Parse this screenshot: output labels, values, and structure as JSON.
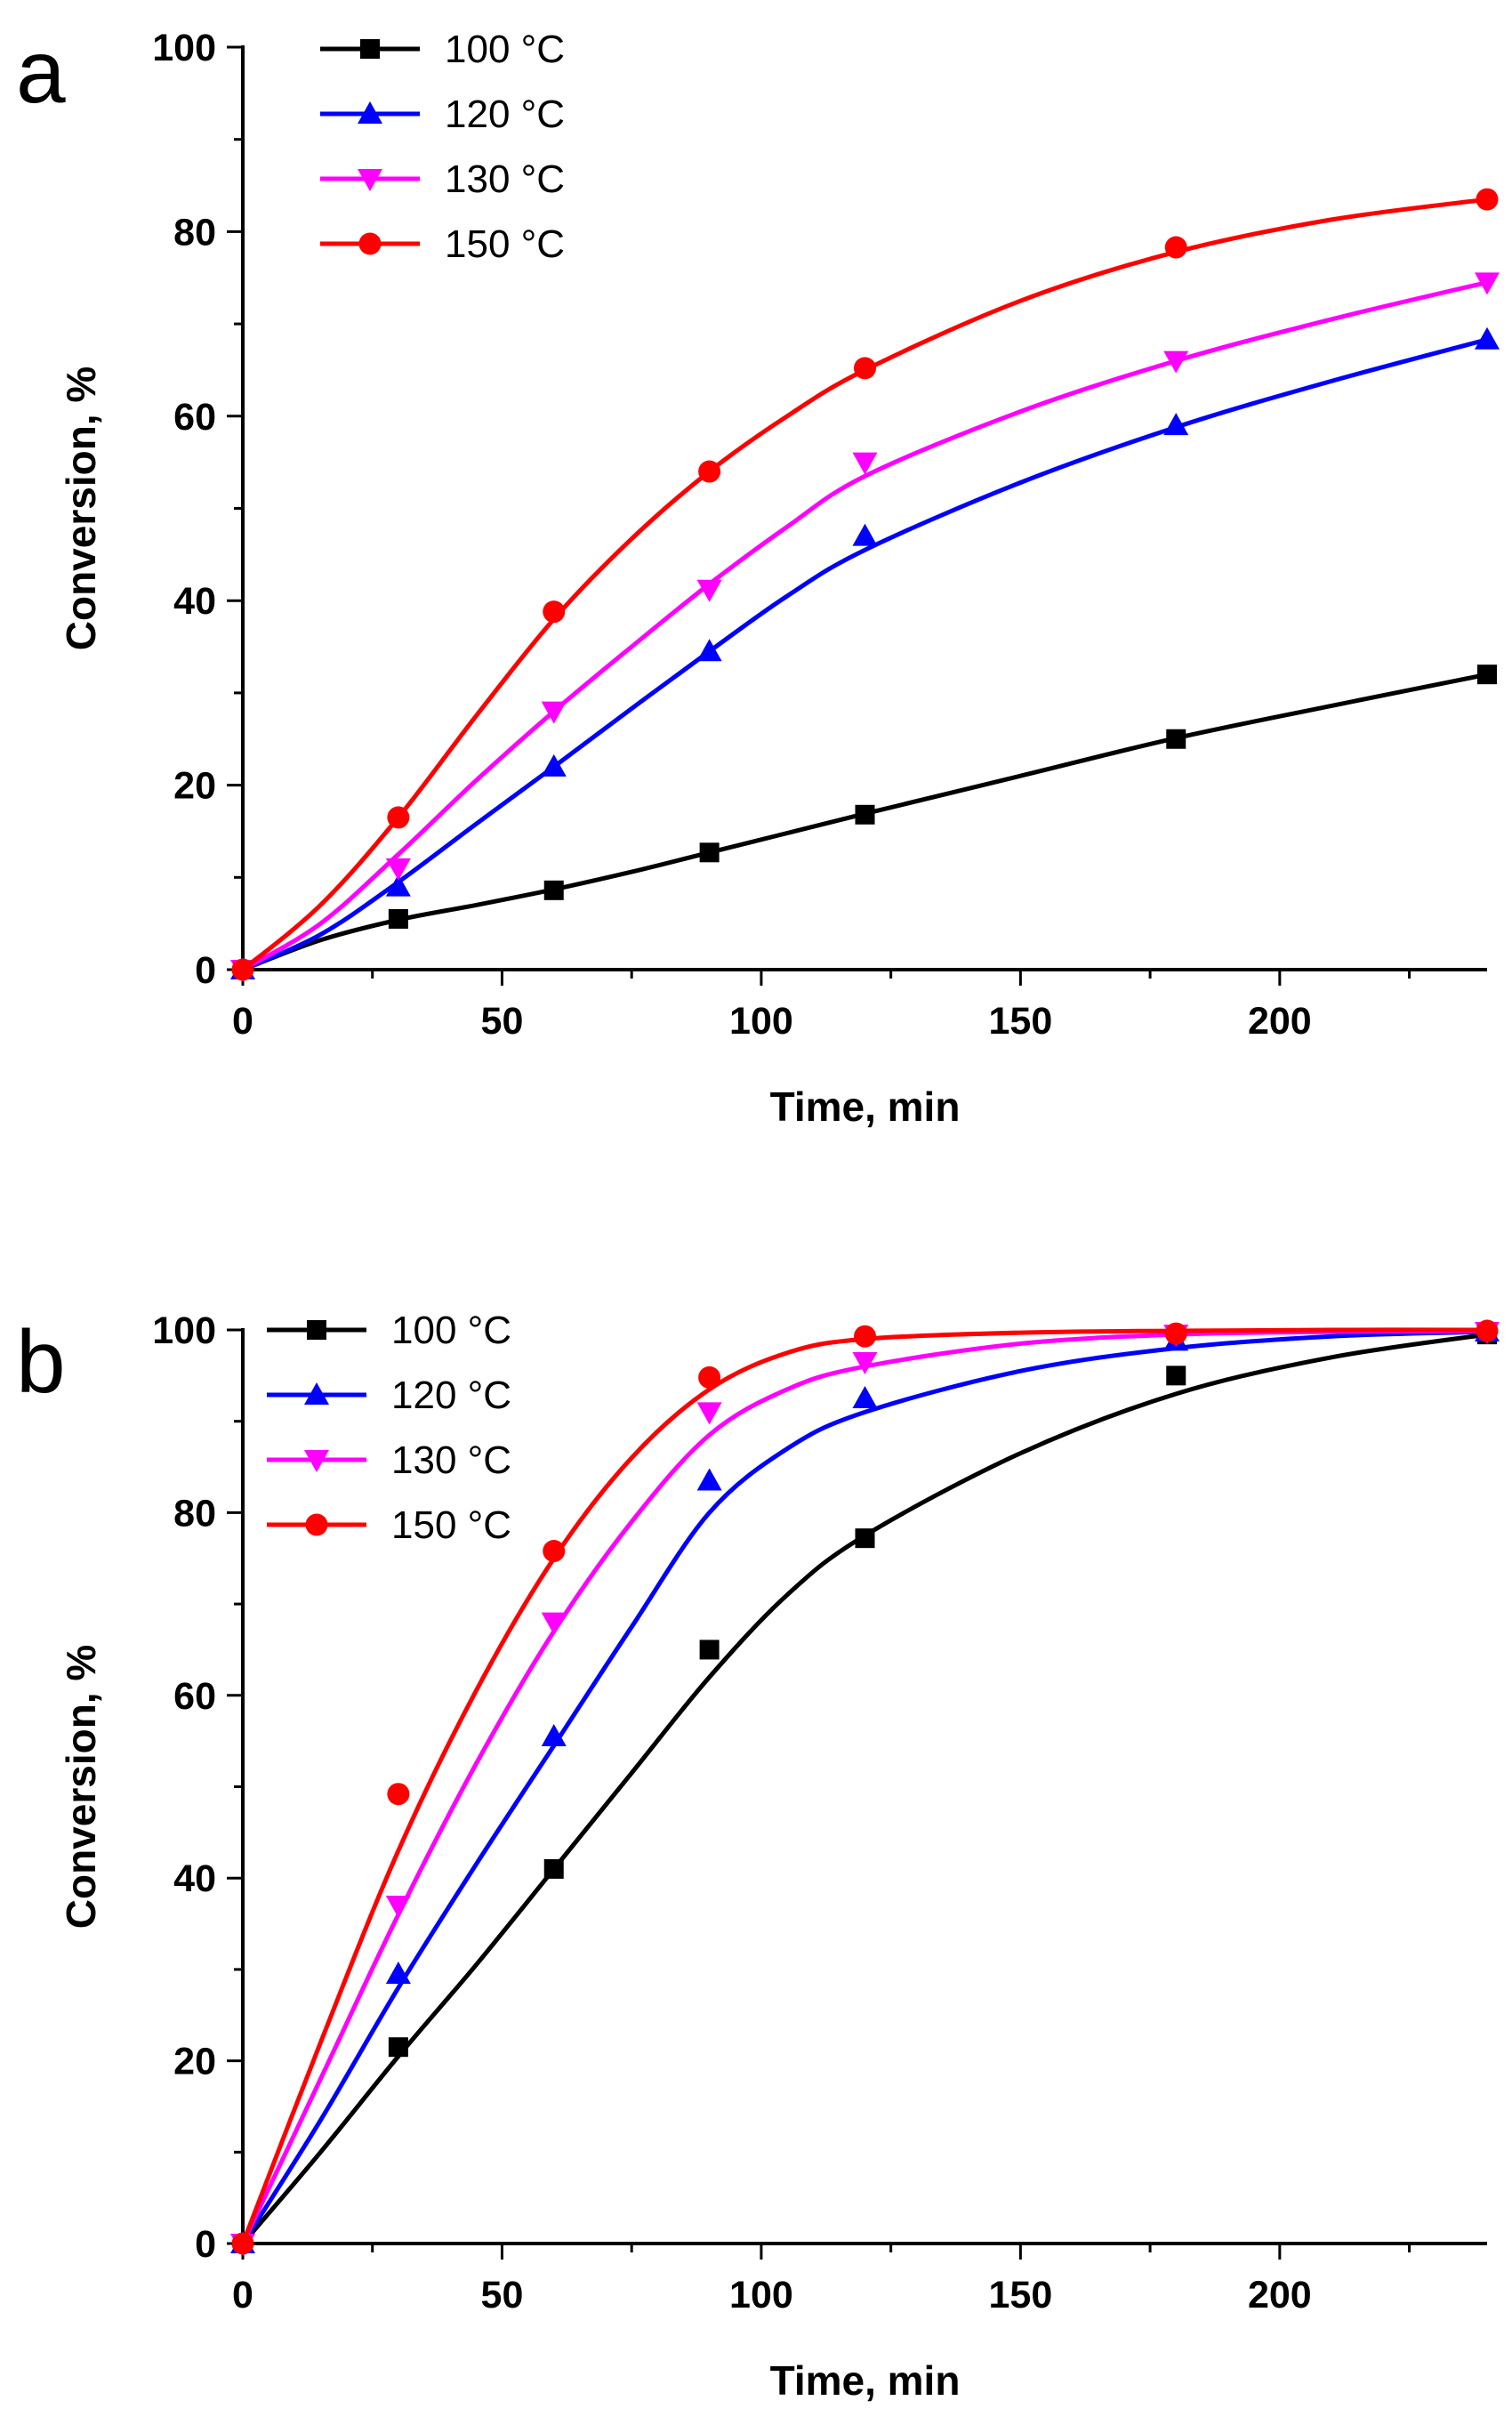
{
  "chart_data": [
    {
      "type": "line",
      "panel_label": "a",
      "xlabel": "Time, min",
      "ylabel": "Conversion, %",
      "xlim": [
        0,
        240
      ],
      "ylim": [
        0,
        100
      ],
      "x_ticks": [
        0,
        50,
        100,
        150,
        200
      ],
      "y_ticks": [
        0,
        20,
        40,
        60,
        80,
        100
      ],
      "legend_position": "top-left",
      "series": [
        {
          "name": "100 °C",
          "color": "#000000",
          "marker": "square",
          "points": [
            [
              0,
              0
            ],
            [
              30,
              5.5
            ],
            [
              60,
              8.6
            ],
            [
              90,
              12.7
            ],
            [
              120,
              16.8
            ],
            [
              180,
              25.0
            ],
            [
              240,
              32.0
            ]
          ],
          "fit": [
            [
              0,
              0
            ],
            [
              15,
              3.2
            ],
            [
              30,
              5.4
            ],
            [
              45,
              7.0
            ],
            [
              60,
              8.7
            ],
            [
              75,
              10.6
            ],
            [
              90,
              12.7
            ],
            [
              105,
              14.8
            ],
            [
              120,
              16.9
            ],
            [
              150,
              21.0
            ],
            [
              180,
              25.1
            ],
            [
              210,
              28.6
            ],
            [
              240,
              32.0
            ]
          ]
        },
        {
          "name": "120 °C",
          "color": "#0000ff",
          "marker": "triangle-up",
          "points": [
            [
              0,
              0
            ],
            [
              30,
              9.0
            ],
            [
              60,
              22.0
            ],
            [
              90,
              34.5
            ],
            [
              120,
              47.0
            ],
            [
              180,
              59.0
            ],
            [
              240,
              68.3
            ]
          ],
          "fit": [
            [
              0,
              0
            ],
            [
              15,
              3.8
            ],
            [
              30,
              9.5
            ],
            [
              45,
              15.8
            ],
            [
              60,
              22.0
            ],
            [
              75,
              28.3
            ],
            [
              90,
              34.5
            ],
            [
              105,
              40.5
            ],
            [
              120,
              45.5
            ],
            [
              150,
              52.8
            ],
            [
              180,
              58.8
            ],
            [
              210,
              63.8
            ],
            [
              240,
              68.3
            ]
          ]
        },
        {
          "name": "130 °C",
          "color": "#ff00ff",
          "marker": "triangle-down",
          "points": [
            [
              0,
              0
            ],
            [
              30,
              11.0
            ],
            [
              60,
              28.0
            ],
            [
              90,
              41.2
            ],
            [
              120,
              55.0
            ],
            [
              180,
              66.0
            ],
            [
              240,
              74.5
            ]
          ],
          "fit": [
            [
              0,
              0
            ],
            [
              15,
              5.0
            ],
            [
              30,
              12.5
            ],
            [
              45,
              20.5
            ],
            [
              60,
              28.0
            ],
            [
              75,
              35.0
            ],
            [
              90,
              41.8
            ],
            [
              105,
              48.0
            ],
            [
              120,
              53.5
            ],
            [
              150,
              60.5
            ],
            [
              180,
              66.0
            ],
            [
              210,
              70.5
            ],
            [
              240,
              74.5
            ]
          ]
        },
        {
          "name": "150 °C",
          "color": "#ff0000",
          "marker": "circle",
          "points": [
            [
              0,
              0
            ],
            [
              30,
              16.5
            ],
            [
              60,
              38.8
            ],
            [
              90,
              54.0
            ],
            [
              120,
              65.2
            ],
            [
              180,
              78.3
            ],
            [
              240,
              83.5
            ]
          ],
          "fit": [
            [
              0,
              0
            ],
            [
              15,
              7.0
            ],
            [
              30,
              16.5
            ],
            [
              45,
              27.5
            ],
            [
              60,
              38.0
            ],
            [
              75,
              46.7
            ],
            [
              90,
              54.0
            ],
            [
              105,
              60.0
            ],
            [
              120,
              65.0
            ],
            [
              150,
              72.5
            ],
            [
              180,
              77.8
            ],
            [
              210,
              81.3
            ],
            [
              240,
              83.5
            ]
          ]
        }
      ]
    },
    {
      "type": "line",
      "panel_label": "b",
      "xlabel": "Time, min",
      "ylabel": "Conversion, %",
      "xlim": [
        0,
        240
      ],
      "ylim": [
        0,
        100
      ],
      "x_ticks": [
        0,
        50,
        100,
        150,
        200
      ],
      "y_ticks": [
        0,
        20,
        40,
        60,
        80,
        100
      ],
      "legend_position": "top-left",
      "series": [
        {
          "name": "100 °C",
          "color": "#000000",
          "marker": "square",
          "points": [
            [
              0,
              0
            ],
            [
              30,
              21.5
            ],
            [
              60,
              41.0
            ],
            [
              90,
              65.0
            ],
            [
              120,
              77.2
            ],
            [
              180,
              95.0
            ],
            [
              240,
              99.5
            ]
          ],
          "fit": [
            [
              0,
              0
            ],
            [
              15,
              10.0
            ],
            [
              30,
              20.5
            ],
            [
              45,
              30.5
            ],
            [
              60,
              41.0
            ],
            [
              75,
              51.5
            ],
            [
              90,
              62.0
            ],
            [
              105,
              71.0
            ],
            [
              120,
              77.5
            ],
            [
              150,
              86.5
            ],
            [
              180,
              93.0
            ],
            [
              210,
              97.0
            ],
            [
              240,
              99.5
            ]
          ]
        },
        {
          "name": "120 °C",
          "color": "#0000ff",
          "marker": "triangle-up",
          "points": [
            [
              0,
              0
            ],
            [
              30,
              29.5
            ],
            [
              60,
              55.5
            ],
            [
              90,
              83.5
            ],
            [
              120,
              92.5
            ],
            [
              180,
              98.8
            ],
            [
              240,
              99.8
            ]
          ],
          "fit": [
            [
              0,
              0
            ],
            [
              15,
              13.5
            ],
            [
              30,
              28.0
            ],
            [
              45,
              41.5
            ],
            [
              60,
              54.5
            ],
            [
              75,
              67.5
            ],
            [
              90,
              80.0
            ],
            [
              105,
              87.0
            ],
            [
              120,
              91.0
            ],
            [
              150,
              95.5
            ],
            [
              180,
              98.0
            ],
            [
              210,
              99.3
            ],
            [
              240,
              99.8
            ]
          ]
        },
        {
          "name": "130 °C",
          "color": "#ff00ff",
          "marker": "triangle-down",
          "points": [
            [
              0,
              0
            ],
            [
              30,
              37.0
            ],
            [
              60,
              68.0
            ],
            [
              90,
              91.0
            ],
            [
              120,
              96.5
            ],
            [
              180,
              99.5
            ],
            [
              240,
              99.8
            ]
          ],
          "fit": [
            [
              0,
              0
            ],
            [
              15,
              18.0
            ],
            [
              30,
              36.0
            ],
            [
              45,
              52.5
            ],
            [
              60,
              67.0
            ],
            [
              75,
              79.0
            ],
            [
              90,
              88.5
            ],
            [
              105,
              93.5
            ],
            [
              120,
              96.0
            ],
            [
              150,
              98.5
            ],
            [
              180,
              99.5
            ],
            [
              210,
              99.8
            ],
            [
              240,
              99.9
            ]
          ]
        },
        {
          "name": "150 °C",
          "color": "#ff0000",
          "marker": "circle",
          "points": [
            [
              0,
              0
            ],
            [
              30,
              49.2
            ],
            [
              60,
              75.8
            ],
            [
              90,
              94.8
            ],
            [
              120,
              99.3
            ],
            [
              180,
              99.6
            ],
            [
              240,
              99.9
            ]
          ],
          "fit": [
            [
              0,
              0
            ],
            [
              15,
              22.0
            ],
            [
              30,
              43.0
            ],
            [
              45,
              60.5
            ],
            [
              60,
              75.0
            ],
            [
              75,
              86.0
            ],
            [
              90,
              93.5
            ],
            [
              105,
              97.5
            ],
            [
              120,
              99.0
            ],
            [
              150,
              99.7
            ],
            [
              180,
              99.9
            ],
            [
              210,
              100.0
            ],
            [
              240,
              100.0
            ]
          ]
        }
      ]
    }
  ]
}
